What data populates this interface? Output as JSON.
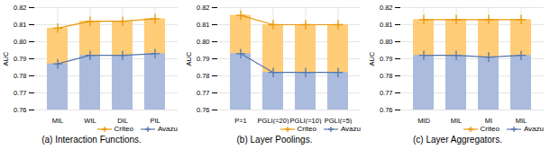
{
  "chart_data": [
    {
      "type": "bar",
      "caption": "(a) Interaction Functions.",
      "ylabel": "AUC",
      "categories": [
        "MIL",
        "WIL",
        "DIL",
        "PIL"
      ],
      "series": [
        {
          "name": "Criteo",
          "type": "bar",
          "color": "#FFCC77",
          "values": [
            0.808,
            0.812,
            0.812,
            0.8135
          ]
        },
        {
          "name": "Avazu",
          "type": "bar",
          "color": "#AABBDD",
          "values": [
            0.787,
            0.792,
            0.792,
            0.793
          ]
        },
        {
          "name": "Criteo",
          "type": "line",
          "color": "#E8980A",
          "marker": "plus",
          "values": [
            0.808,
            0.812,
            0.812,
            0.8135
          ]
        },
        {
          "name": "Avazu",
          "type": "line",
          "color": "#5577AA",
          "marker": "plus",
          "values": [
            0.787,
            0.792,
            0.792,
            0.793
          ]
        }
      ],
      "ylim": [
        0.76,
        0.82
      ],
      "yticks": [
        0.76,
        0.77,
        0.78,
        0.79,
        {
          "value": 0.8,
          "label": "0.80"
        },
        0.81,
        0.82
      ],
      "grid": true,
      "legend": "lower right"
    },
    {
      "type": "bar",
      "caption": "(b) Layer Poolings.",
      "ylabel": "AUC",
      "categories": [
        "P=1",
        "PGLI(=20)",
        "PGLI(=10)",
        "PGLI(=5)"
      ],
      "series": [
        {
          "name": "Criteo",
          "type": "bar",
          "color": "#FFCC77",
          "values": [
            0.8155,
            0.81,
            0.81,
            0.81
          ]
        },
        {
          "name": "Avazu",
          "type": "bar",
          "color": "#AABBDD",
          "values": [
            0.793,
            0.782,
            0.782,
            0.782
          ]
        },
        {
          "name": "Criteo",
          "type": "line",
          "color": "#E8980A",
          "marker": "plus",
          "values": [
            0.8155,
            0.81,
            0.81,
            0.81
          ]
        },
        {
          "name": "Avazu",
          "type": "line",
          "color": "#5577AA",
          "marker": "plus",
          "values": [
            0.793,
            0.782,
            0.782,
            0.782
          ]
        }
      ],
      "ylim": [
        0.76,
        0.82
      ],
      "yticks": [
        0.76,
        0.77,
        0.78,
        0.79,
        {
          "value": 0.8,
          "label": "0.80"
        },
        0.81,
        0.82
      ],
      "grid": true,
      "legend": "lower right"
    },
    {
      "type": "bar",
      "caption": "(c) Layer Aggregators.",
      "ylabel": "AUC",
      "categories": [
        "MID",
        "MIL",
        "MI",
        "MIL"
      ],
      "series": [
        {
          "name": "Criteo",
          "type": "bar",
          "color": "#FFCC77",
          "values": [
            0.813,
            0.813,
            0.813,
            0.813
          ]
        },
        {
          "name": "Avazu",
          "type": "bar",
          "color": "#AABBDD",
          "values": [
            0.792,
            0.792,
            0.791,
            0.792
          ]
        },
        {
          "name": "Criteo",
          "type": "line",
          "color": "#E8980A",
          "marker": "plus",
          "values": [
            0.813,
            0.813,
            0.813,
            0.813
          ]
        },
        {
          "name": "Avazu",
          "type": "line",
          "color": "#5577AA",
          "marker": "plus",
          "values": [
            0.792,
            0.792,
            0.791,
            0.792
          ]
        }
      ],
      "ylim": [
        0.76,
        0.82
      ],
      "yticks": [
        0.76,
        0.77,
        0.78,
        0.79,
        {
          "value": 0.8,
          "label": "0.80"
        },
        0.81,
        0.82
      ],
      "grid": true,
      "legend": "lower right"
    }
  ]
}
